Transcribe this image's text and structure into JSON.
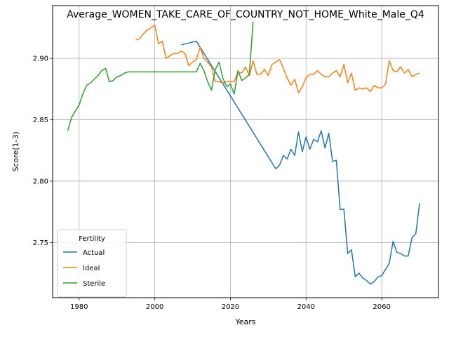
{
  "chart_data": {
    "type": "line",
    "title": "Average_WOMEN_TAKE_CARE_OF_COUNTRY_NOT_HOME_White_Male_Q4",
    "xlabel": "Years",
    "ylabel": "Score(1-3)",
    "xlim": [
      1973,
      2075
    ],
    "ylim": [
      2.705,
      2.943
    ],
    "xticks": [
      1980,
      2000,
      2020,
      2040,
      2060
    ],
    "yticks": [
      2.75,
      2.8,
      2.85,
      2.9
    ],
    "ytick_labels": [
      "2.75",
      "2.80",
      "2.85",
      "2.90"
    ],
    "grid": true,
    "legend": {
      "title": "Fertility",
      "position": "lower-left"
    },
    "series": [
      {
        "name": "Actual",
        "color": "#1f77b4",
        "x": [
          2007,
          2011,
          2032,
          2033,
          2034,
          2035,
          2036,
          2037,
          2038,
          2039,
          2040,
          2041,
          2042,
          2043,
          2044,
          2045,
          2046,
          2047,
          2048,
          2049,
          2050,
          2051,
          2052,
          2053,
          2054,
          2055,
          2056,
          2057,
          2058,
          2059,
          2060,
          2061,
          2062,
          2063,
          2064,
          2065,
          2066,
          2067,
          2068,
          2069,
          2070
        ],
        "y": [
          2.911,
          2.914,
          2.81,
          2.813,
          2.821,
          2.818,
          2.826,
          2.821,
          2.84,
          2.824,
          2.836,
          2.826,
          2.834,
          2.832,
          2.841,
          2.827,
          2.839,
          2.816,
          2.817,
          2.777,
          2.777,
          2.741,
          2.744,
          2.722,
          2.725,
          2.721,
          2.719,
          2.716,
          2.718,
          2.722,
          2.723,
          2.728,
          2.733,
          2.751,
          2.742,
          2.741,
          2.739,
          2.739,
          2.754,
          2.757,
          2.782
        ]
      },
      {
        "name": "Ideal",
        "color": "#ff7f0e",
        "x": [
          1995,
          1996,
          1997,
          1998,
          1999,
          2000,
          2001,
          2002,
          2003,
          2004,
          2005,
          2006,
          2007,
          2008,
          2009,
          2010,
          2011,
          2012,
          2013,
          2014,
          2015,
          2016,
          2017,
          2018,
          2019,
          2020,
          2021,
          2022,
          2023,
          2024,
          2025,
          2026,
          2027,
          2028,
          2029,
          2030,
          2031,
          2032,
          2033,
          2034,
          2035,
          2036,
          2037,
          2038,
          2039,
          2040,
          2041,
          2042,
          2043,
          2044,
          2045,
          2046,
          2047,
          2048,
          2049,
          2050,
          2051,
          2052,
          2053,
          2054,
          2055,
          2056,
          2057,
          2058,
          2059,
          2060,
          2061,
          2062,
          2063,
          2064,
          2065,
          2066,
          2067,
          2068,
          2069,
          2070
        ],
        "y": [
          2.915,
          2.916,
          2.92,
          2.923,
          2.925,
          2.927,
          2.912,
          2.914,
          2.9,
          2.902,
          2.904,
          2.904,
          2.906,
          2.904,
          2.894,
          2.897,
          2.899,
          2.909,
          2.9,
          2.897,
          2.893,
          2.881,
          2.881,
          2.88,
          2.881,
          2.881,
          2.881,
          2.889,
          2.888,
          2.893,
          2.886,
          2.898,
          2.887,
          2.887,
          2.891,
          2.886,
          2.895,
          2.897,
          2.899,
          2.892,
          2.884,
          2.878,
          2.883,
          2.872,
          2.877,
          2.884,
          2.887,
          2.887,
          2.89,
          2.887,
          2.885,
          2.885,
          2.888,
          2.89,
          2.885,
          2.895,
          2.88,
          2.888,
          2.874,
          2.876,
          2.875,
          2.876,
          2.873,
          2.878,
          2.876,
          2.876,
          2.879,
          2.898,
          2.89,
          2.889,
          2.893,
          2.888,
          2.891,
          2.885,
          2.887,
          2.888
        ]
      },
      {
        "name": "Sterile",
        "color": "#2ca02c",
        "x": [
          1977,
          1978,
          1979,
          1980,
          1981,
          1982,
          1983,
          1984,
          1985,
          1986,
          1987,
          1988,
          1989,
          1990,
          1991,
          1992,
          1993,
          2011,
          2012,
          2013,
          2014,
          2015,
          2016,
          2017,
          2018,
          2019,
          2020,
          2021,
          2022,
          2023,
          2024,
          2025,
          2026
        ],
        "y": [
          2.841,
          2.852,
          2.857,
          2.862,
          2.871,
          2.878,
          2.88,
          2.883,
          2.886,
          2.89,
          2.892,
          2.881,
          2.882,
          2.885,
          2.886,
          2.888,
          2.889,
          2.889,
          2.896,
          2.89,
          2.881,
          2.874,
          2.891,
          2.897,
          2.884,
          2.877,
          2.879,
          2.871,
          2.89,
          2.882,
          2.884,
          2.887,
          2.93
        ]
      }
    ]
  }
}
